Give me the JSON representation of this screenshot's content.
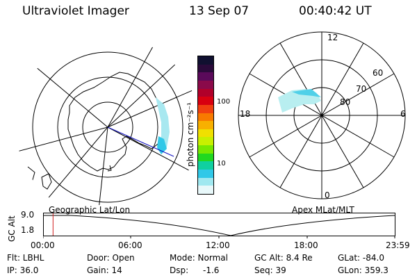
{
  "header": {
    "instrument": "Ultraviolet Imager",
    "date": "13 Sep 07",
    "time": "00:40:42 UT"
  },
  "colorbar": {
    "label": "photon cm⁻²s⁻¹",
    "ticks": [
      "100",
      "10"
    ],
    "colors": [
      "#101030",
      "#2a0a3a",
      "#5a0a5a",
      "#8a0a4a",
      "#b0002a",
      "#d80010",
      "#f04010",
      "#f87a00",
      "#f8b000",
      "#f0e000",
      "#c8f000",
      "#78e800",
      "#20d820",
      "#10d0a0",
      "#30c8e8",
      "#a0e8f0",
      "#e8f8fa"
    ]
  },
  "geo_map": {
    "caption": "Geographic Lat/Lon"
  },
  "mag_map": {
    "caption": "Apex MLat/MLT",
    "mlt_labels": {
      "top": "12",
      "left": "18",
      "right": "6",
      "bottom": "0"
    },
    "lat_labels": [
      "60",
      "70",
      "80"
    ]
  },
  "altitude_plot": {
    "ylabel": "GC Alt",
    "yticks": [
      "9.0",
      "1.8"
    ],
    "xticks": [
      "00:00",
      "06:00",
      "12:00",
      "18:00",
      "23:59"
    ],
    "marker_time_hours": 0.68
  },
  "info": {
    "filter": "Flt: LBHL",
    "ip": "IP: 36.0",
    "door": "Door: Open",
    "gain": "Gain: 14",
    "mode": "Mode: Normal",
    "dsp": "Dsp:",
    "dsp_val": "-1.6",
    "gc_alt": "GC Alt: 8.4 Re",
    "seq": "Seq: 39",
    "glat": "GLat: -84.0",
    "glon": "GLon: 359.3"
  }
}
